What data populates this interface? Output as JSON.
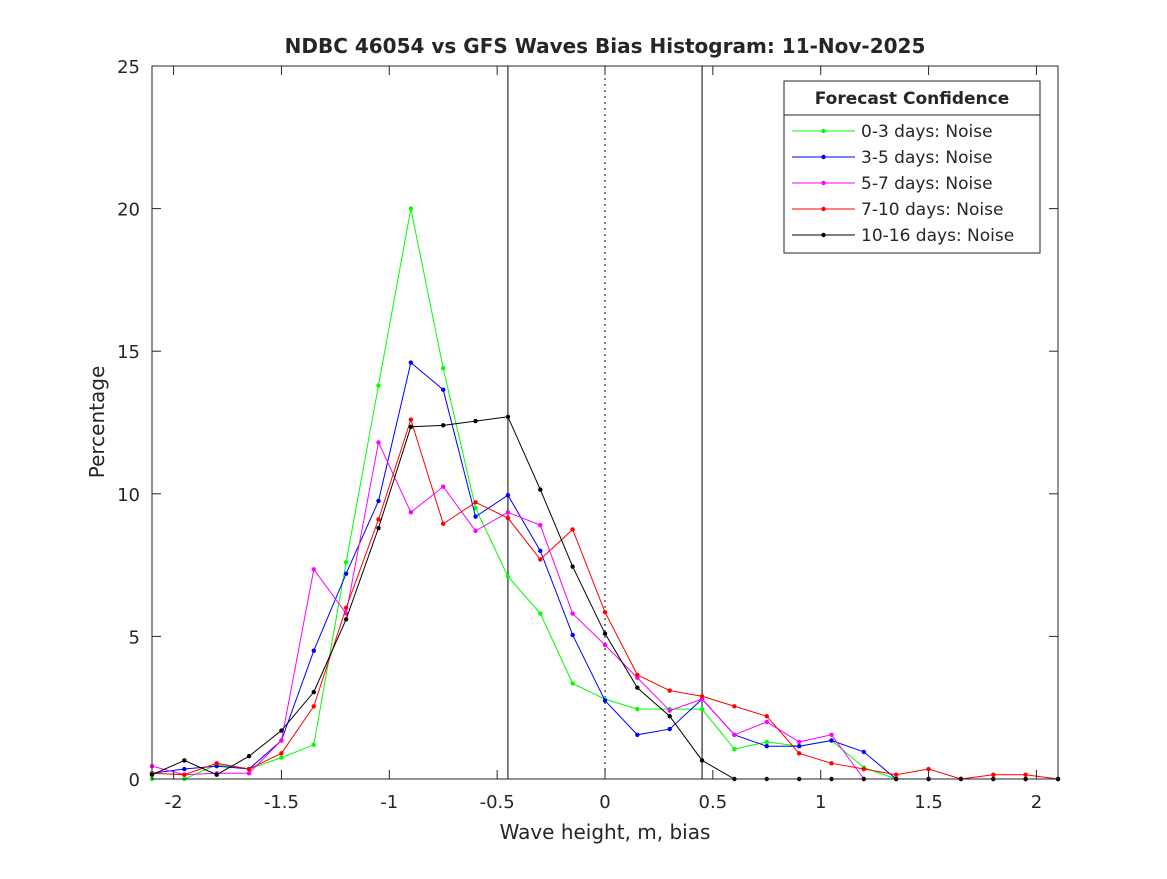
{
  "chart_data": {
    "type": "line",
    "title": "NDBC 46054 vs GFS Waves Bias Histogram: 11-Nov-2025",
    "xlabel": "Wave height, m, bias",
    "ylabel": "Percentage",
    "xlim": [
      -2.1,
      2.1
    ],
    "ylim": [
      0,
      25
    ],
    "xticks": [
      -2,
      -1.5,
      -1,
      -0.5,
      0,
      0.5,
      1,
      1.5,
      2
    ],
    "xtick_labels": [
      "-2",
      "-1.5",
      "-1",
      "-0.5",
      "0",
      "0.5",
      "1",
      "1.5",
      "2"
    ],
    "yticks": [
      0,
      5,
      10,
      15,
      20,
      25
    ],
    "ytick_labels": [
      "0",
      "5",
      "10",
      "15",
      "20",
      "25"
    ],
    "grid": false,
    "reference_lines": [
      {
        "x": -0.45,
        "style": "solid"
      },
      {
        "x": 0,
        "style": "dotted"
      },
      {
        "x": 0.45,
        "style": "solid"
      }
    ],
    "legend": {
      "title": "Forecast Confidence",
      "location": "top-right"
    },
    "x": [
      -2.1,
      -1.95,
      -1.8,
      -1.65,
      -1.5,
      -1.35,
      -1.2,
      -1.05,
      -0.9,
      -0.75,
      -0.6,
      -0.45,
      -0.3,
      -0.15,
      0,
      0.15,
      0.3,
      0.45,
      0.6,
      0.75,
      0.9,
      1.05,
      1.2,
      1.35,
      1.5,
      1.65,
      1.8,
      1.95,
      2.1
    ],
    "series": [
      {
        "name": "0-3 days: Noise",
        "color": "#00ff00",
        "values": [
          0,
          0,
          0.5,
          0.35,
          0.75,
          1.2,
          7.6,
          13.8,
          20.0,
          14.4,
          9.5,
          7.1,
          5.8,
          3.35,
          2.8,
          2.45,
          2.45,
          2.45,
          1.05,
          1.3,
          1.15,
          1.35,
          0.4,
          0,
          0,
          0,
          0,
          0,
          0
        ]
      },
      {
        "name": "3-5 days: Noise",
        "color": "#0000ff",
        "values": [
          0.2,
          0.35,
          0.45,
          0.35,
          1.35,
          4.5,
          7.2,
          9.75,
          14.6,
          13.65,
          9.2,
          9.95,
          8.0,
          5.05,
          2.75,
          1.55,
          1.75,
          2.8,
          1.55,
          1.15,
          1.15,
          1.35,
          0.95,
          0,
          0,
          0,
          0,
          0,
          0
        ]
      },
      {
        "name": "5-7 days: Noise",
        "color": "#ff00ff",
        "values": [
          0.45,
          0.15,
          0.2,
          0.2,
          1.35,
          7.35,
          5.8,
          11.8,
          9.35,
          10.25,
          8.7,
          9.35,
          8.9,
          5.8,
          4.7,
          3.55,
          2.4,
          2.8,
          1.55,
          2.0,
          1.3,
          1.55,
          0,
          0,
          0,
          0,
          0,
          0,
          0
        ]
      },
      {
        "name": "7-10 days: Noise",
        "color": "#ff0000",
        "values": [
          0.2,
          0.15,
          0.55,
          0.35,
          0.9,
          2.55,
          6.0,
          9.1,
          12.6,
          8.95,
          9.7,
          9.15,
          7.7,
          8.75,
          5.85,
          3.65,
          3.1,
          2.9,
          2.55,
          2.2,
          0.9,
          0.55,
          0.35,
          0.15,
          0.35,
          0,
          0.15,
          0.15,
          0
        ]
      },
      {
        "name": "10-16 days: Noise",
        "color": "#000000",
        "values": [
          0.15,
          0.65,
          0.15,
          0.8,
          1.7,
          3.05,
          5.6,
          8.8,
          12.35,
          12.4,
          12.55,
          12.7,
          10.15,
          7.45,
          5.1,
          3.2,
          2.2,
          0.65,
          0,
          0,
          0,
          0,
          0,
          0,
          0,
          0,
          0,
          0,
          0
        ]
      }
    ]
  }
}
